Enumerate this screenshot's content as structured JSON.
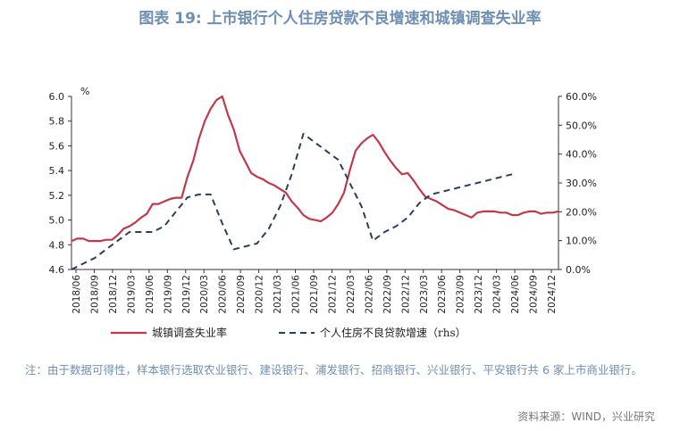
{
  "title": "图表 19: 上市银行个人住房贷款不良增速和城镇调查失业率",
  "note": "注：由于数据可得性，样本银行选取农业银行、建设银行、浦发银行、招商银行、兴业银行、平安银行共 6 家上市商业银行。",
  "source": "资料来源：WIND，兴业研究",
  "colors": {
    "series1": "#c0394b",
    "series2": "#2b3f5c"
  },
  "chart_data": {
    "type": "line",
    "y_left": {
      "label": "%",
      "min": 4.6,
      "max": 6.0,
      "ticks": [
        "4.6",
        "4.8",
        "5.0",
        "5.2",
        "5.4",
        "5.6",
        "5.8",
        "6.0"
      ]
    },
    "y_right": {
      "min": 0,
      "max": 60,
      "ticks": [
        "0.0%",
        "10.0%",
        "20.0%",
        "30.0%",
        "40.0%",
        "50.0%",
        "60.0%"
      ]
    },
    "x_labels": [
      "2018/06",
      "2018/09",
      "2018/12",
      "2019/03",
      "2019/06",
      "2019/09",
      "2019/12",
      "2020/03",
      "2020/06",
      "2020/09",
      "2020/12",
      "2021/03",
      "2021/06",
      "2021/09",
      "2021/12",
      "2022/03",
      "2022/06",
      "2022/09",
      "2022/12",
      "2023/03",
      "2023/06",
      "2023/09",
      "2023/12",
      "2024/03",
      "2024/06",
      "2024/09",
      "2024/12"
    ],
    "series": [
      {
        "name": "城镇调查失业率",
        "axis": "left",
        "style": "solid",
        "values": [
          4.83,
          4.85,
          4.85,
          4.83,
          4.83,
          4.83,
          4.84,
          4.84,
          4.88,
          4.93,
          4.95,
          4.98,
          5.02,
          5.05,
          5.13,
          5.13,
          5.15,
          5.17,
          5.18,
          5.18,
          5.35,
          5.48,
          5.66,
          5.8,
          5.9,
          5.97,
          6.0,
          5.85,
          5.73,
          5.56,
          5.47,
          5.38,
          5.35,
          5.33,
          5.3,
          5.28,
          5.25,
          5.22,
          5.15,
          5.1,
          5.04,
          5.01,
          5.0,
          4.99,
          5.02,
          5.06,
          5.13,
          5.22,
          5.4,
          5.56,
          5.62,
          5.66,
          5.69,
          5.63,
          5.55,
          5.48,
          5.42,
          5.37,
          5.38,
          5.32,
          5.25,
          5.19,
          5.17,
          5.15,
          5.12,
          5.09,
          5.08,
          5.06,
          5.04,
          5.02,
          5.06,
          5.07,
          5.07,
          5.07,
          5.06,
          5.06,
          5.04,
          5.04,
          5.06,
          5.07,
          5.07,
          5.05,
          5.06,
          5.06,
          5.07
        ]
      },
      {
        "name": "个人住房不良贷款增速（rhs）",
        "axis": "right",
        "style": "dashed",
        "x_index": [
          0,
          2,
          4,
          6,
          8,
          10,
          12,
          14,
          16,
          18,
          20,
          22,
          24,
          26,
          28,
          30,
          32,
          34,
          36,
          38,
          40,
          42,
          44,
          46,
          48,
          50,
          52,
          54,
          56,
          58,
          60,
          62,
          64,
          66,
          68,
          70,
          72,
          74,
          76
        ],
        "values": [
          0,
          2,
          4,
          7,
          10,
          13,
          13,
          13,
          15,
          20,
          25,
          26,
          26,
          16,
          7,
          8,
          9,
          14,
          22,
          33,
          47,
          44,
          41,
          38,
          30,
          22,
          10,
          13,
          15,
          18,
          23,
          26,
          27,
          28,
          29,
          30,
          31,
          32,
          33
        ]
      }
    ]
  }
}
